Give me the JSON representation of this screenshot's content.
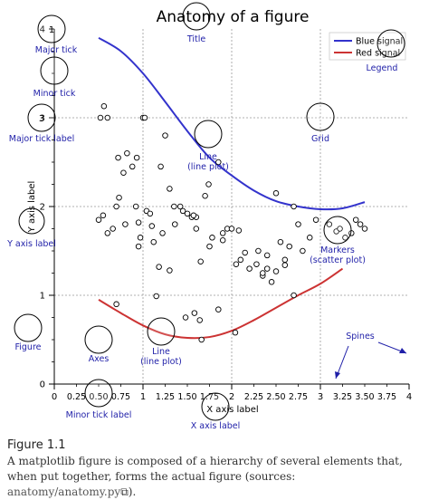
{
  "chart_data": {
    "type": "line",
    "title": "Anatomy of a figure",
    "xlabel": "X axis label",
    "ylabel": "Y axis label",
    "xlim": [
      0,
      4
    ],
    "ylim": [
      0,
      4
    ],
    "x_major_ticks": [
      0,
      1,
      2,
      3,
      4
    ],
    "x_minor_ticks": [
      0.25,
      0.5,
      0.75,
      1.25,
      1.5,
      1.75,
      2.25,
      2.5,
      2.75,
      3.25,
      3.5,
      3.75
    ],
    "x_major_tick_labels": [
      "0",
      "1",
      "2",
      "3",
      "4"
    ],
    "x_minor_tick_labels": [
      "0.25",
      "0.50",
      "0.75",
      "1.25",
      "1.50",
      "1.75",
      "2.25",
      "2.50",
      "2.75",
      "3.25",
      "3.50",
      "3.75"
    ],
    "y_major_ticks": [
      0,
      1,
      2,
      3,
      4
    ],
    "y_major_tick_labels": [
      "0",
      "1",
      "2",
      "3",
      "4"
    ],
    "grid": true,
    "legend_placement": "top-right",
    "series": [
      {
        "name": "Blue signal",
        "color": "#3333cc",
        "x": [
          0.5,
          0.75,
          1.0,
          1.25,
          1.5,
          1.75,
          2.0,
          2.25,
          2.5,
          2.75,
          3.0,
          3.25,
          3.5
        ],
        "y": [
          3.9,
          3.75,
          3.5,
          3.18,
          2.85,
          2.55,
          2.35,
          2.18,
          2.06,
          2.0,
          1.97,
          1.98,
          2.05
        ]
      },
      {
        "name": "Red signal",
        "color": "#cc3333",
        "x": [
          0.5,
          0.75,
          1.0,
          1.25,
          1.5,
          1.75,
          2.0,
          2.25,
          2.5,
          2.75,
          3.0,
          3.25
        ],
        "y": [
          0.95,
          0.8,
          0.66,
          0.56,
          0.52,
          0.53,
          0.6,
          0.72,
          0.86,
          1.0,
          1.13,
          1.3
        ]
      },
      {
        "name": "Markers",
        "type": "scatter",
        "x": [
          0.56,
          0.6,
          0.72,
          0.73,
          0.78,
          0.82,
          0.88,
          0.93,
          0.95,
          0.5,
          0.52,
          0.6,
          0.66,
          0.8,
          0.92,
          0.7,
          1.0,
          1.02,
          1.04,
          1.08,
          1.12,
          1.2,
          1.25,
          1.3,
          1.35,
          1.42,
          1.45,
          1.5,
          1.55,
          1.6,
          1.65,
          1.7,
          1.74,
          1.78,
          1.85,
          1.9,
          1.95,
          2.0,
          2.05,
          2.1,
          2.15,
          2.2,
          2.28,
          2.35,
          2.4,
          2.45,
          2.5,
          2.55,
          2.6,
          2.65,
          2.7,
          2.75,
          2.8,
          2.88,
          2.95,
          3.1,
          3.18,
          3.22,
          3.28,
          3.35,
          3.4,
          3.45,
          3.5,
          1.18,
          1.3,
          0.97,
          1.15,
          1.22,
          1.6,
          1.75,
          1.9,
          2.08,
          2.35,
          2.5,
          2.6,
          2.7,
          1.1,
          0.95,
          2.3,
          2.4,
          1.48,
          1.64,
          1.85,
          2.04,
          1.66,
          1.58,
          0.55,
          1.36,
          1.57,
          0.7
        ],
        "y": [
          3.13,
          3.0,
          2.55,
          2.1,
          2.38,
          2.6,
          2.45,
          2.55,
          1.55,
          1.85,
          3.0,
          1.7,
          1.75,
          1.8,
          2.0,
          2.0,
          3.0,
          3.0,
          1.95,
          1.92,
          1.6,
          2.45,
          2.8,
          2.2,
          2.0,
          2.0,
          1.95,
          1.92,
          1.88,
          1.75,
          1.38,
          2.12,
          2.25,
          1.65,
          2.5,
          1.7,
          1.75,
          1.75,
          1.35,
          1.4,
          1.48,
          1.3,
          1.35,
          1.22,
          1.3,
          1.15,
          2.15,
          1.6,
          1.4,
          1.55,
          1.0,
          1.8,
          1.5,
          1.65,
          1.85,
          1.8,
          1.72,
          1.75,
          1.65,
          1.7,
          1.85,
          1.8,
          1.75,
          1.32,
          1.28,
          1.65,
          0.99,
          1.7,
          1.88,
          1.55,
          1.62,
          1.73,
          1.25,
          1.27,
          1.34,
          2.0,
          1.78,
          1.82,
          1.5,
          1.45,
          0.75,
          0.72,
          0.84,
          0.58,
          0.5,
          0.8,
          1.9,
          1.8,
          1.9,
          0.9
        ]
      }
    ],
    "annotations": [
      {
        "text": "Major tick",
        "marker": "1"
      },
      {
        "text": "Minor tick",
        "marker": ""
      },
      {
        "text": "Major tick label",
        "marker": "3"
      },
      {
        "text": "Title",
        "marker": ""
      },
      {
        "text": "Legend",
        "marker": ""
      },
      {
        "text": "Grid",
        "marker": ""
      },
      {
        "text": "Line\n(line plot)",
        "marker": ""
      },
      {
        "text": "Y axis label",
        "marker": ""
      },
      {
        "text": "Markers\n(scatter plot)",
        "marker": ""
      },
      {
        "text": "Figure",
        "marker": ""
      },
      {
        "text": "Axes",
        "marker": ""
      },
      {
        "text": "Line\n(line plot)",
        "marker": ""
      },
      {
        "text": "Spines",
        "marker": ""
      },
      {
        "text": "Minor tick label",
        "marker": ""
      },
      {
        "text": "X axis label",
        "marker": ""
      }
    ],
    "annotation_color": "#1f1fa8"
  },
  "caption": {
    "title": "Figure 1.1",
    "body": "A matplotlib figure is composed of a hierarchy of several elements that, when put together, forms the actual figure (sources: ",
    "link": "anatomy/anatomy.py",
    "link_icon": "external-link-icon",
    "end": ")."
  }
}
